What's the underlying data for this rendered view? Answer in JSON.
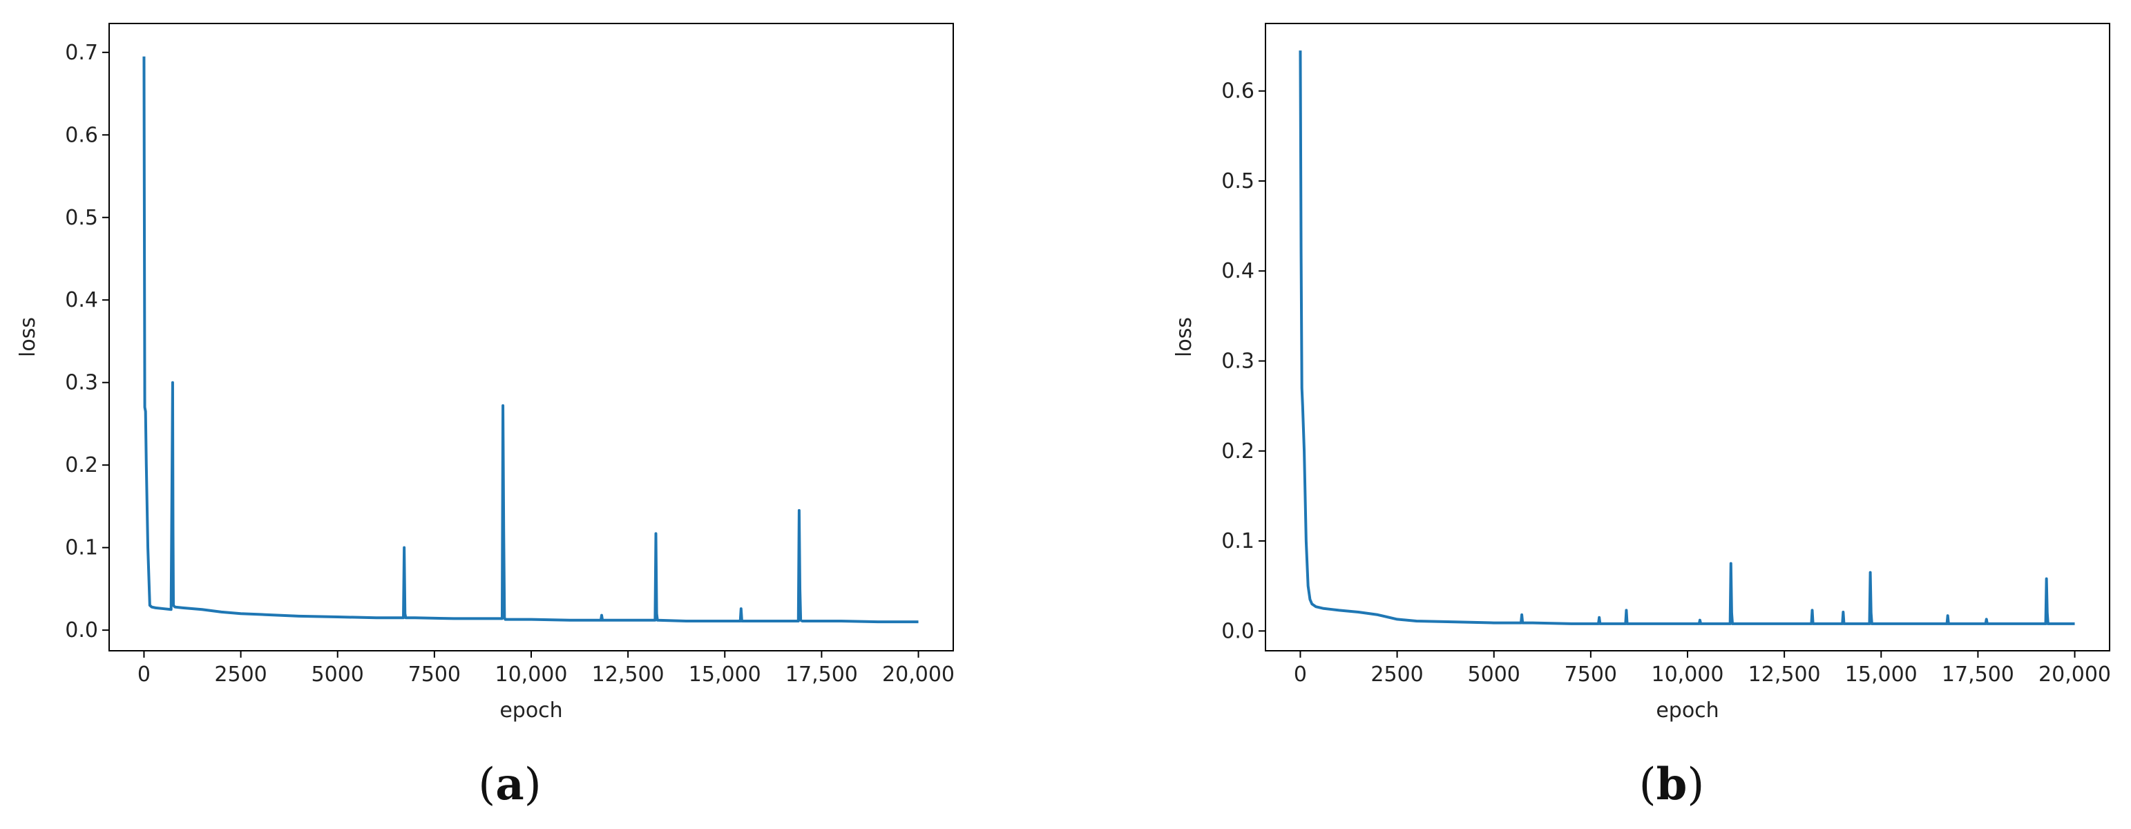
{
  "figure": {
    "line_color": "#1f77b4",
    "panels": [
      {
        "label": "a"
      },
      {
        "label": "b"
      }
    ]
  },
  "chart_data": [
    {
      "type": "line",
      "panel": "a",
      "xlabel": "epoch",
      "ylabel": "loss",
      "xlim": [
        -900,
        20900
      ],
      "ylim": [
        -0.025,
        0.735
      ],
      "xticks": [
        0,
        2500,
        5000,
        7500,
        10000,
        12500,
        15000,
        17500,
        20000
      ],
      "xtick_labels": [
        "0",
        "2500",
        "5000",
        "7500",
        "10,000",
        "12,500",
        "15,000",
        "17,500",
        "20,000"
      ],
      "yticks": [
        0.0,
        0.1,
        0.2,
        0.3,
        0.4,
        0.5,
        0.6,
        0.7
      ],
      "ytick_labels": [
        "0.0",
        "0.1",
        "0.2",
        "0.3",
        "0.4",
        "0.5",
        "0.6",
        "0.7"
      ],
      "grid": false,
      "series": [
        {
          "x": [
            0,
            20,
            40,
            60,
            100,
            150,
            200,
            300,
            500,
            700,
            740,
            750,
            760,
            780,
            800,
            1000,
            1500,
            2000,
            2500,
            3000,
            4000,
            5000,
            6000,
            6700,
            6720,
            6740,
            6760,
            7000,
            8000,
            9000,
            9250,
            9270,
            9290,
            9310,
            9330,
            9400,
            10000,
            11000,
            11800,
            11820,
            11840,
            12000,
            12500,
            13000,
            13200,
            13220,
            13240,
            13260,
            14000,
            15000,
            15400,
            15420,
            15440,
            16000,
            16900,
            16920,
            16940,
            16960,
            17000,
            18000,
            19000,
            20000
          ],
          "y": [
            0.695,
            0.27,
            0.265,
            0.2,
            0.1,
            0.03,
            0.028,
            0.027,
            0.026,
            0.025,
            0.3,
            0.12,
            0.03,
            0.029,
            0.028,
            0.027,
            0.025,
            0.022,
            0.02,
            0.019,
            0.017,
            0.016,
            0.015,
            0.015,
            0.1,
            0.02,
            0.015,
            0.015,
            0.014,
            0.014,
            0.014,
            0.272,
            0.12,
            0.015,
            0.013,
            0.013,
            0.013,
            0.012,
            0.012,
            0.018,
            0.012,
            0.012,
            0.012,
            0.012,
            0.012,
            0.117,
            0.02,
            0.012,
            0.011,
            0.011,
            0.011,
            0.026,
            0.011,
            0.011,
            0.011,
            0.145,
            0.05,
            0.012,
            0.011,
            0.011,
            0.01,
            0.01
          ]
        }
      ]
    },
    {
      "type": "line",
      "panel": "b",
      "xlabel": "epoch",
      "ylabel": "loss",
      "xlim": [
        -900,
        20900
      ],
      "ylim": [
        -0.022,
        0.675
      ],
      "xticks": [
        0,
        2500,
        5000,
        7500,
        10000,
        12500,
        15000,
        17500,
        20000
      ],
      "xtick_labels": [
        "0",
        "2500",
        "5000",
        "7500",
        "10,000",
        "12,500",
        "15,000",
        "17,500",
        "20,000"
      ],
      "yticks": [
        0.0,
        0.1,
        0.2,
        0.3,
        0.4,
        0.5,
        0.6
      ],
      "ytick_labels": [
        "0.0",
        "0.1",
        "0.2",
        "0.3",
        "0.4",
        "0.5",
        "0.6"
      ],
      "grid": false,
      "series": [
        {
          "x": [
            0,
            20,
            40,
            60,
            100,
            150,
            200,
            250,
            300,
            400,
            600,
            800,
            1000,
            1500,
            2000,
            2500,
            3000,
            4000,
            5000,
            5700,
            5720,
            5740,
            6000,
            7000,
            7700,
            7720,
            7740,
            8400,
            8420,
            8440,
            9000,
            10000,
            10300,
            10320,
            10340,
            11000,
            11100,
            11120,
            11140,
            11160,
            12000,
            13200,
            13220,
            13240,
            14000,
            14020,
            14040,
            14700,
            14720,
            14740,
            14760,
            15000,
            16700,
            16720,
            16740,
            17700,
            17720,
            17740,
            18000,
            19000,
            19250,
            19270,
            19290,
            19310,
            20000
          ],
          "y": [
            0.645,
            0.42,
            0.27,
            0.25,
            0.2,
            0.1,
            0.05,
            0.035,
            0.03,
            0.027,
            0.025,
            0.024,
            0.023,
            0.021,
            0.018,
            0.013,
            0.011,
            0.01,
            0.009,
            0.009,
            0.018,
            0.009,
            0.009,
            0.008,
            0.008,
            0.015,
            0.008,
            0.008,
            0.023,
            0.008,
            0.008,
            0.008,
            0.008,
            0.012,
            0.008,
            0.008,
            0.008,
            0.075,
            0.02,
            0.008,
            0.008,
            0.008,
            0.023,
            0.008,
            0.008,
            0.021,
            0.008,
            0.008,
            0.065,
            0.02,
            0.008,
            0.008,
            0.008,
            0.017,
            0.008,
            0.008,
            0.013,
            0.008,
            0.008,
            0.008,
            0.008,
            0.058,
            0.02,
            0.008,
            0.008
          ]
        }
      ]
    }
  ]
}
